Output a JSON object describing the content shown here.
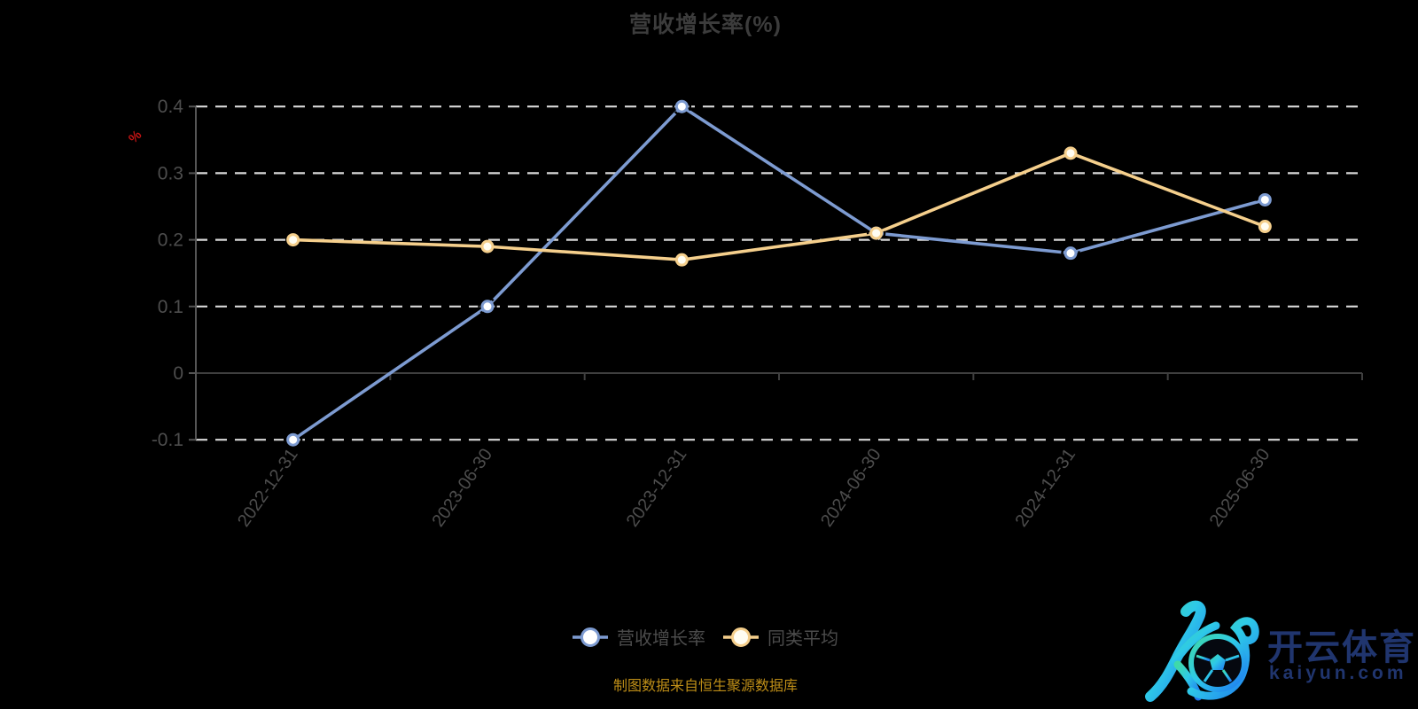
{
  "chart_data": {
    "type": "line",
    "title": "营收增长率(%)",
    "ylabel": "%",
    "xlabel": "",
    "grid": "horizontal dashed, solid zero line",
    "legend_position": "bottom center",
    "categories": [
      "2022-12-31",
      "2023-06-30",
      "2023-12-31",
      "2024-06-30",
      "2024-12-31",
      "2025-06-30"
    ],
    "yticks": [
      -0.1,
      0,
      0.1,
      0.2,
      0.3,
      0.4
    ],
    "ylim": [
      -0.1,
      0.4
    ],
    "series": [
      {
        "name": "营收增长率",
        "color": "#7d9bd1",
        "marker_fill": "#ffffff",
        "marker_accent": "black dashed ring",
        "values": [
          -0.1,
          0.1,
          0.4,
          0.21,
          0.18,
          0.26
        ]
      },
      {
        "name": "同类平均",
        "color": "#f5cf8c",
        "marker_fill": "#fffdf2",
        "marker_accent": "none",
        "values": [
          0.2,
          0.19,
          0.17,
          0.21,
          0.33,
          0.22
        ]
      }
    ],
    "source_note": "制图数据来自恒生聚源数据库"
  },
  "colors": {
    "background": "#000000",
    "title": "#3c3c3c",
    "axis_label": "#4d4d4d",
    "grid_dash": "#d9d9d9",
    "axis_line": "#555555",
    "zero_line": "#3f3f3f",
    "y_unit_label": "#c31414",
    "legend_text": "#4c4c4c",
    "source_text": "#bd8d17",
    "watermark_text": "#20356e",
    "watermark_gradient": [
      "#3fd9a8",
      "#2ec9e8",
      "#1e78f0"
    ]
  },
  "watermark": {
    "brand": "开云体育",
    "domain": "kaiyun.com"
  }
}
